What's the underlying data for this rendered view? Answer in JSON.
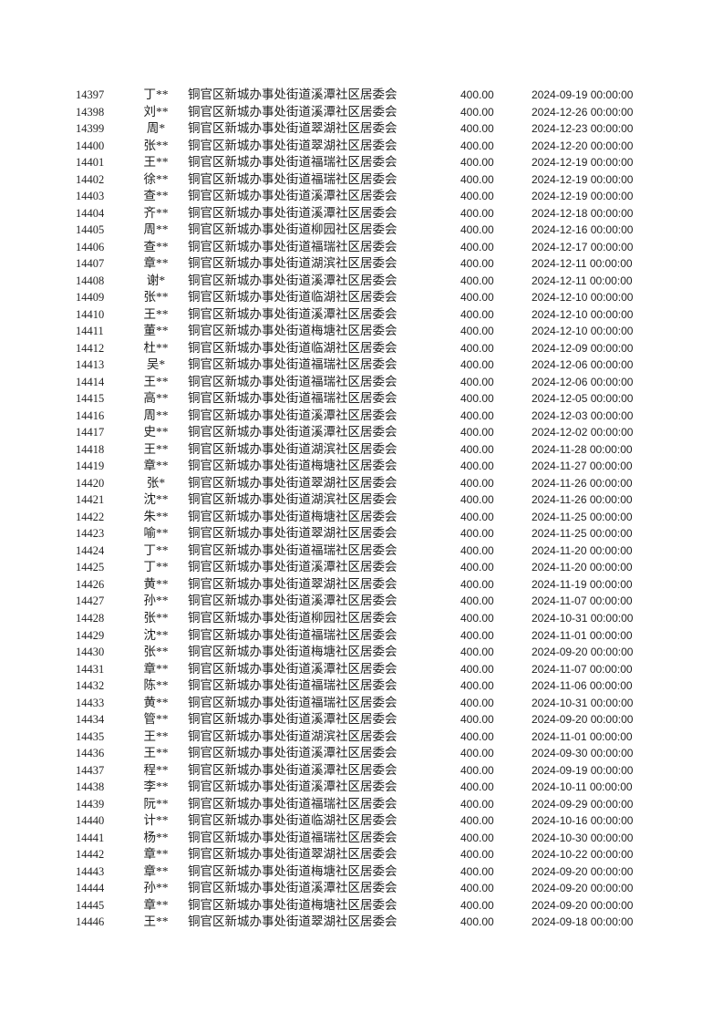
{
  "colors": {
    "page_background": "#ffffff",
    "text": "#1f1f1f"
  },
  "table": {
    "rows": [
      {
        "id": "14397",
        "name": "丁**",
        "unit": "铜官区新城办事处街道溪潭社区居委会",
        "amount": "400.00",
        "datetime": "2024-09-19 00:00:00"
      },
      {
        "id": "14398",
        "name": "刘**",
        "unit": "铜官区新城办事处街道溪潭社区居委会",
        "amount": "400.00",
        "datetime": "2024-12-26 00:00:00"
      },
      {
        "id": "14399",
        "name": "周*",
        "unit": "铜官区新城办事处街道翠湖社区居委会",
        "amount": "400.00",
        "datetime": "2024-12-23 00:00:00"
      },
      {
        "id": "14400",
        "name": "张**",
        "unit": "铜官区新城办事处街道翠湖社区居委会",
        "amount": "400.00",
        "datetime": "2024-12-20 00:00:00"
      },
      {
        "id": "14401",
        "name": "王**",
        "unit": "铜官区新城办事处街道福瑞社区居委会",
        "amount": "400.00",
        "datetime": "2024-12-19 00:00:00"
      },
      {
        "id": "14402",
        "name": "徐**",
        "unit": "铜官区新城办事处街道福瑞社区居委会",
        "amount": "400.00",
        "datetime": "2024-12-19 00:00:00"
      },
      {
        "id": "14403",
        "name": "查**",
        "unit": "铜官区新城办事处街道溪潭社区居委会",
        "amount": "400.00",
        "datetime": "2024-12-19 00:00:00"
      },
      {
        "id": "14404",
        "name": "齐**",
        "unit": "铜官区新城办事处街道溪潭社区居委会",
        "amount": "400.00",
        "datetime": "2024-12-18 00:00:00"
      },
      {
        "id": "14405",
        "name": "周**",
        "unit": "铜官区新城办事处街道柳园社区居委会",
        "amount": "400.00",
        "datetime": "2024-12-16 00:00:00"
      },
      {
        "id": "14406",
        "name": "查**",
        "unit": "铜官区新城办事处街道福瑞社区居委会",
        "amount": "400.00",
        "datetime": "2024-12-17 00:00:00"
      },
      {
        "id": "14407",
        "name": "章**",
        "unit": "铜官区新城办事处街道湖滨社区居委会",
        "amount": "400.00",
        "datetime": "2024-12-11 00:00:00"
      },
      {
        "id": "14408",
        "name": "谢*",
        "unit": "铜官区新城办事处街道溪潭社区居委会",
        "amount": "400.00",
        "datetime": "2024-12-11 00:00:00"
      },
      {
        "id": "14409",
        "name": "张**",
        "unit": "铜官区新城办事处街道临湖社区居委会",
        "amount": "400.00",
        "datetime": "2024-12-10 00:00:00"
      },
      {
        "id": "14410",
        "name": "王**",
        "unit": "铜官区新城办事处街道溪潭社区居委会",
        "amount": "400.00",
        "datetime": "2024-12-10 00:00:00"
      },
      {
        "id": "14411",
        "name": "董**",
        "unit": "铜官区新城办事处街道梅塘社区居委会",
        "amount": "400.00",
        "datetime": "2024-12-10 00:00:00"
      },
      {
        "id": "14412",
        "name": "杜**",
        "unit": "铜官区新城办事处街道临湖社区居委会",
        "amount": "400.00",
        "datetime": "2024-12-09 00:00:00"
      },
      {
        "id": "14413",
        "name": "吴*",
        "unit": "铜官区新城办事处街道福瑞社区居委会",
        "amount": "400.00",
        "datetime": "2024-12-06 00:00:00"
      },
      {
        "id": "14414",
        "name": "王**",
        "unit": "铜官区新城办事处街道福瑞社区居委会",
        "amount": "400.00",
        "datetime": "2024-12-06 00:00:00"
      },
      {
        "id": "14415",
        "name": "高**",
        "unit": "铜官区新城办事处街道福瑞社区居委会",
        "amount": "400.00",
        "datetime": "2024-12-05 00:00:00"
      },
      {
        "id": "14416",
        "name": "周**",
        "unit": "铜官区新城办事处街道溪潭社区居委会",
        "amount": "400.00",
        "datetime": "2024-12-03 00:00:00"
      },
      {
        "id": "14417",
        "name": "史**",
        "unit": "铜官区新城办事处街道溪潭社区居委会",
        "amount": "400.00",
        "datetime": "2024-12-02 00:00:00"
      },
      {
        "id": "14418",
        "name": "王**",
        "unit": "铜官区新城办事处街道湖滨社区居委会",
        "amount": "400.00",
        "datetime": "2024-11-28 00:00:00"
      },
      {
        "id": "14419",
        "name": "章**",
        "unit": "铜官区新城办事处街道梅塘社区居委会",
        "amount": "400.00",
        "datetime": "2024-11-27 00:00:00"
      },
      {
        "id": "14420",
        "name": "张*",
        "unit": "铜官区新城办事处街道翠湖社区居委会",
        "amount": "400.00",
        "datetime": "2024-11-26 00:00:00"
      },
      {
        "id": "14421",
        "name": "沈**",
        "unit": "铜官区新城办事处街道湖滨社区居委会",
        "amount": "400.00",
        "datetime": "2024-11-26 00:00:00"
      },
      {
        "id": "14422",
        "name": "朱**",
        "unit": "铜官区新城办事处街道梅塘社区居委会",
        "amount": "400.00",
        "datetime": "2024-11-25 00:00:00"
      },
      {
        "id": "14423",
        "name": "喻**",
        "unit": "铜官区新城办事处街道翠湖社区居委会",
        "amount": "400.00",
        "datetime": "2024-11-25 00:00:00"
      },
      {
        "id": "14424",
        "name": "丁**",
        "unit": "铜官区新城办事处街道福瑞社区居委会",
        "amount": "400.00",
        "datetime": "2024-11-20 00:00:00"
      },
      {
        "id": "14425",
        "name": "丁**",
        "unit": "铜官区新城办事处街道溪潭社区居委会",
        "amount": "400.00",
        "datetime": "2024-11-20 00:00:00"
      },
      {
        "id": "14426",
        "name": "黄**",
        "unit": "铜官区新城办事处街道翠湖社区居委会",
        "amount": "400.00",
        "datetime": "2024-11-19 00:00:00"
      },
      {
        "id": "14427",
        "name": "孙**",
        "unit": "铜官区新城办事处街道溪潭社区居委会",
        "amount": "400.00",
        "datetime": "2024-11-07 00:00:00"
      },
      {
        "id": "14428",
        "name": "张**",
        "unit": "铜官区新城办事处街道柳园社区居委会",
        "amount": "400.00",
        "datetime": "2024-10-31 00:00:00"
      },
      {
        "id": "14429",
        "name": "沈**",
        "unit": "铜官区新城办事处街道福瑞社区居委会",
        "amount": "400.00",
        "datetime": "2024-11-01 00:00:00"
      },
      {
        "id": "14430",
        "name": "张**",
        "unit": "铜官区新城办事处街道梅塘社区居委会",
        "amount": "400.00",
        "datetime": "2024-09-20 00:00:00"
      },
      {
        "id": "14431",
        "name": "章**",
        "unit": "铜官区新城办事处街道溪潭社区居委会",
        "amount": "400.00",
        "datetime": "2024-11-07 00:00:00"
      },
      {
        "id": "14432",
        "name": "陈**",
        "unit": "铜官区新城办事处街道福瑞社区居委会",
        "amount": "400.00",
        "datetime": "2024-11-06 00:00:00"
      },
      {
        "id": "14433",
        "name": "黄**",
        "unit": "铜官区新城办事处街道福瑞社区居委会",
        "amount": "400.00",
        "datetime": "2024-10-31 00:00:00"
      },
      {
        "id": "14434",
        "name": "管**",
        "unit": "铜官区新城办事处街道溪潭社区居委会",
        "amount": "400.00",
        "datetime": "2024-09-20 00:00:00"
      },
      {
        "id": "14435",
        "name": "王**",
        "unit": "铜官区新城办事处街道湖滨社区居委会",
        "amount": "400.00",
        "datetime": "2024-11-01 00:00:00"
      },
      {
        "id": "14436",
        "name": "王**",
        "unit": "铜官区新城办事处街道溪潭社区居委会",
        "amount": "400.00",
        "datetime": "2024-09-30 00:00:00"
      },
      {
        "id": "14437",
        "name": "程**",
        "unit": "铜官区新城办事处街道溪潭社区居委会",
        "amount": "400.00",
        "datetime": "2024-09-19 00:00:00"
      },
      {
        "id": "14438",
        "name": "李**",
        "unit": "铜官区新城办事处街道溪潭社区居委会",
        "amount": "400.00",
        "datetime": "2024-10-11 00:00:00"
      },
      {
        "id": "14439",
        "name": "阮**",
        "unit": "铜官区新城办事处街道福瑞社区居委会",
        "amount": "400.00",
        "datetime": "2024-09-29 00:00:00"
      },
      {
        "id": "14440",
        "name": "计**",
        "unit": "铜官区新城办事处街道临湖社区居委会",
        "amount": "400.00",
        "datetime": "2024-10-16 00:00:00"
      },
      {
        "id": "14441",
        "name": "杨**",
        "unit": "铜官区新城办事处街道福瑞社区居委会",
        "amount": "400.00",
        "datetime": "2024-10-30 00:00:00"
      },
      {
        "id": "14442",
        "name": "章**",
        "unit": "铜官区新城办事处街道翠湖社区居委会",
        "amount": "400.00",
        "datetime": "2024-10-22 00:00:00"
      },
      {
        "id": "14443",
        "name": "章**",
        "unit": "铜官区新城办事处街道梅塘社区居委会",
        "amount": "400.00",
        "datetime": "2024-09-20 00:00:00"
      },
      {
        "id": "14444",
        "name": "孙**",
        "unit": "铜官区新城办事处街道溪潭社区居委会",
        "amount": "400.00",
        "datetime": "2024-09-20 00:00:00"
      },
      {
        "id": "14445",
        "name": "章**",
        "unit": "铜官区新城办事处街道梅塘社区居委会",
        "amount": "400.00",
        "datetime": "2024-09-20 00:00:00"
      },
      {
        "id": "14446",
        "name": "王**",
        "unit": "铜官区新城办事处街道翠湖社区居委会",
        "amount": "400.00",
        "datetime": "2024-09-18 00:00:00"
      }
    ]
  }
}
